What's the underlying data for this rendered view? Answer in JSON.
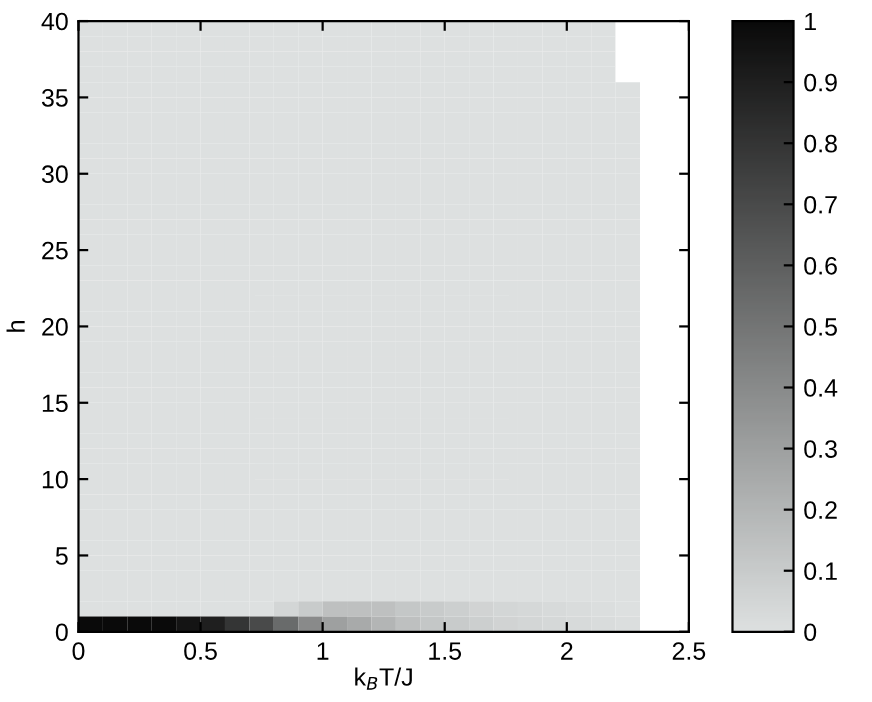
{
  "chart_data": {
    "type": "heatmap",
    "xlabel": "k$_{B}$T/J",
    "ylabel": "h",
    "xlim": [
      0,
      2.5
    ],
    "ylim": [
      0,
      40
    ],
    "xticks": [
      0,
      0.5,
      1,
      1.5,
      2,
      2.5
    ],
    "yticks": [
      0,
      5,
      10,
      15,
      20,
      25,
      30,
      35,
      40
    ],
    "clim": [
      0,
      1
    ],
    "cticks": [
      0,
      0.1,
      0.2,
      0.3,
      0.4,
      0.5,
      0.6,
      0.7,
      0.8,
      0.9,
      1
    ],
    "colors": [
      "#dde0e0",
      "#0a0a0a"
    ],
    "cells": [
      [
        0,
        0,
        0,
        0,
        0,
        0,
        0,
        0,
        0,
        0,
        0,
        0,
        0,
        0,
        0,
        0,
        0,
        0,
        0,
        0,
        0,
        0,
        null,
        null,
        null
      ],
      [
        0,
        0,
        0,
        0,
        0,
        0,
        0,
        0,
        0,
        0,
        0,
        0,
        0,
        0,
        0,
        0,
        0,
        0,
        0,
        0,
        0,
        0,
        null,
        null,
        null
      ],
      [
        0,
        0,
        0,
        0,
        0,
        0,
        0,
        0,
        0,
        0,
        0,
        0,
        0,
        0,
        0,
        0,
        0,
        0,
        0,
        0,
        0,
        0,
        null,
        null,
        null
      ],
      [
        0,
        0,
        0,
        0,
        0,
        0,
        0,
        0,
        0,
        0,
        0,
        0,
        0,
        0,
        0,
        0,
        0,
        0,
        0,
        0,
        0,
        0,
        null,
        null,
        null
      ],
      [
        0,
        0,
        0,
        0,
        0,
        0,
        0,
        0,
        0,
        0,
        0,
        0,
        0,
        0,
        0,
        0,
        0,
        0,
        0,
        0,
        0,
        0,
        0,
        null,
        null
      ],
      [
        0,
        0,
        0,
        0,
        0,
        0,
        0,
        0,
        0,
        0,
        0,
        0,
        0,
        0,
        0,
        0,
        0,
        0,
        0,
        0,
        0,
        0,
        0,
        null,
        null
      ],
      [
        0,
        0,
        0,
        0,
        0,
        0,
        0,
        0,
        0,
        0,
        0,
        0,
        0,
        0,
        0,
        0,
        0,
        0,
        0,
        0,
        0,
        0,
        0,
        null,
        null
      ],
      [
        0,
        0,
        0,
        0,
        0,
        0,
        0,
        0,
        0,
        0,
        0,
        0,
        0,
        0,
        0,
        0,
        0,
        0,
        0,
        0,
        0,
        0,
        0,
        null,
        null
      ],
      [
        0,
        0,
        0,
        0,
        0,
        0,
        0,
        0,
        0,
        0,
        0,
        0,
        0,
        0,
        0,
        0,
        0,
        0,
        0,
        0,
        0,
        0,
        0,
        null,
        null
      ],
      [
        0,
        0,
        0,
        0,
        0,
        0,
        0,
        0,
        0,
        0,
        0,
        0,
        0,
        0,
        0,
        0,
        0,
        0,
        0,
        0,
        0,
        0,
        0,
        null,
        null
      ],
      [
        0,
        0,
        0,
        0,
        0,
        0,
        0,
        0,
        0,
        0,
        0,
        0,
        0,
        0,
        0,
        0,
        0,
        0,
        0,
        0,
        0,
        0,
        0,
        null,
        null
      ],
      [
        0,
        0,
        0,
        0,
        0,
        0,
        0,
        0,
        0,
        0,
        0,
        0,
        0,
        0,
        0,
        0,
        0,
        0,
        0,
        0,
        0,
        0,
        0,
        null,
        null
      ],
      [
        0,
        0,
        0,
        0,
        0,
        0,
        0,
        0,
        0,
        0,
        0,
        0,
        0,
        0,
        0,
        0,
        0,
        0,
        0,
        0,
        0,
        0,
        0,
        null,
        null
      ],
      [
        0,
        0,
        0,
        0,
        0,
        0,
        0,
        0,
        0,
        0,
        0,
        0,
        0,
        0,
        0,
        0,
        0,
        0,
        0,
        0,
        0,
        0,
        0,
        null,
        null
      ],
      [
        0,
        0,
        0,
        0,
        0,
        0,
        0,
        0,
        0,
        0,
        0,
        0,
        0,
        0,
        0,
        0,
        0,
        0,
        0,
        0,
        0,
        0,
        0,
        null,
        null
      ],
      [
        0,
        0,
        0,
        0,
        0,
        0,
        0,
        0,
        0,
        0,
        0,
        0,
        0,
        0,
        0,
        0,
        0,
        0,
        0,
        0,
        0,
        0,
        0,
        null,
        null
      ],
      [
        0,
        0,
        0,
        0,
        0,
        0,
        0,
        0,
        0,
        0,
        0,
        0,
        0,
        0,
        0,
        0,
        0,
        0,
        0,
        0,
        0,
        0,
        0,
        null,
        null
      ],
      [
        0,
        0,
        0,
        0,
        0,
        0,
        0,
        0,
        0,
        0,
        0,
        0,
        0,
        0,
        0,
        0,
        0,
        0,
        0,
        0,
        0,
        0,
        0,
        null,
        null
      ],
      [
        0,
        0,
        0,
        0,
        0,
        0,
        0,
        0,
        0,
        0,
        0,
        0,
        0,
        0,
        0,
        0,
        0,
        0,
        0,
        0,
        0,
        0,
        0,
        null,
        null
      ],
      [
        0,
        0,
        0,
        0,
        0,
        0,
        0,
        0,
        0,
        0,
        0,
        0,
        0,
        0,
        0,
        0,
        0,
        0,
        0,
        0,
        0,
        0,
        0,
        null,
        null
      ],
      [
        0,
        0,
        0,
        0,
        0,
        0,
        0,
        0,
        0,
        0,
        0,
        0,
        0,
        0,
        0,
        0,
        0,
        0,
        0,
        0,
        0,
        0,
        0,
        null,
        null
      ],
      [
        0,
        0,
        0,
        0,
        0,
        0,
        0,
        0,
        0,
        0,
        0,
        0,
        0,
        0,
        0,
        0,
        0,
        0,
        0,
        0,
        0,
        0,
        0,
        null,
        null
      ],
      [
        0,
        0,
        0,
        0,
        0,
        0,
        0,
        0,
        0,
        0,
        0,
        0,
        0,
        0,
        0,
        0,
        0,
        0,
        0,
        0,
        0,
        0,
        0,
        null,
        null
      ],
      [
        0,
        0,
        0,
        0,
        0,
        0,
        0,
        0,
        0,
        0,
        0,
        0,
        0,
        0,
        0,
        0,
        0,
        0,
        0,
        0,
        0,
        0,
        0,
        null,
        null
      ],
      [
        0,
        0,
        0,
        0,
        0,
        0,
        0,
        0,
        0,
        0,
        0,
        0,
        0,
        0,
        0,
        0,
        0,
        0,
        0,
        0,
        0,
        0,
        0,
        null,
        null
      ],
      [
        0,
        0,
        0,
        0,
        0,
        0,
        0,
        0,
        0,
        0,
        0,
        0,
        0,
        0,
        0,
        0,
        0,
        0,
        0,
        0,
        0,
        0,
        0,
        null,
        null
      ],
      [
        0,
        0,
        0,
        0,
        0,
        0,
        0,
        0,
        0,
        0,
        0,
        0,
        0,
        0,
        0,
        0,
        0,
        0,
        0,
        0,
        0,
        0,
        0,
        null,
        null
      ],
      [
        0,
        0,
        0,
        0,
        0,
        0,
        0,
        0,
        0,
        0,
        0,
        0,
        0,
        0,
        0,
        0,
        0,
        0,
        0,
        0,
        0,
        0,
        0,
        null,
        null
      ],
      [
        0,
        0,
        0,
        0,
        0,
        0,
        0,
        0,
        0,
        0,
        0,
        0,
        0,
        0,
        0,
        0,
        0,
        0,
        0,
        0,
        0,
        0,
        0,
        null,
        null
      ],
      [
        0,
        0,
        0,
        0,
        0,
        0,
        0,
        0,
        0,
        0,
        0,
        0,
        0,
        0,
        0,
        0,
        0,
        0,
        0,
        0,
        0,
        0,
        0,
        null,
        null
      ],
      [
        0,
        0,
        0,
        0,
        0,
        0,
        0,
        0,
        0,
        0,
        0,
        0,
        0,
        0,
        0,
        0,
        0,
        0,
        0,
        0,
        0,
        0,
        0,
        null,
        null
      ],
      [
        0,
        0,
        0,
        0,
        0,
        0,
        0,
        0,
        0,
        0,
        0,
        0,
        0,
        0,
        0,
        0,
        0,
        0,
        0,
        0,
        0,
        0,
        0,
        null,
        null
      ],
      [
        0,
        0,
        0,
        0,
        0,
        0,
        0,
        0,
        0,
        0,
        0,
        0,
        0,
        0,
        0,
        0,
        0,
        0,
        0,
        0,
        0,
        0,
        0,
        null,
        null
      ],
      [
        0,
        0,
        0,
        0,
        0,
        0,
        0,
        0,
        0,
        0,
        0,
        0,
        0,
        0,
        0,
        0,
        0,
        0,
        0,
        0,
        0,
        0,
        0,
        null,
        null
      ],
      [
        0,
        0,
        0,
        0,
        0,
        0,
        0,
        0,
        0,
        0,
        0,
        0,
        0,
        0,
        0,
        0,
        0,
        0,
        0,
        0,
        0,
        0,
        0,
        null,
        null
      ],
      [
        0,
        0,
        0,
        0,
        0,
        0,
        0,
        0,
        0,
        0,
        0,
        0,
        0,
        0,
        0,
        0,
        0,
        0,
        0,
        0,
        0,
        0,
        0,
        null,
        null
      ],
      [
        0,
        0,
        0,
        0,
        0,
        0,
        0,
        0,
        0,
        0,
        0,
        0,
        0,
        0,
        0,
        0,
        0,
        0,
        0,
        0,
        0,
        0,
        0,
        null,
        null
      ],
      [
        0,
        0,
        0,
        0,
        0,
        0,
        0,
        0,
        0,
        0,
        0,
        0,
        0,
        0,
        0,
        0,
        0,
        0,
        0,
        0,
        0,
        0,
        0,
        null,
        null
      ],
      [
        0,
        0,
        0,
        0,
        0,
        0,
        0,
        0,
        0.05,
        0.1,
        0.15,
        0.15,
        0.15,
        0.12,
        0.1,
        0.08,
        0.06,
        0.05,
        0.04,
        0.03,
        0.02,
        0.01,
        0,
        null,
        null
      ],
      [
        1,
        1,
        1,
        1,
        0.95,
        0.9,
        0.8,
        0.7,
        0.55,
        0.4,
        0.3,
        0.25,
        0.2,
        0.15,
        0.12,
        0.1,
        0.08,
        0.06,
        0.05,
        0.04,
        0.03,
        0.02,
        0.01,
        null,
        null
      ]
    ]
  }
}
